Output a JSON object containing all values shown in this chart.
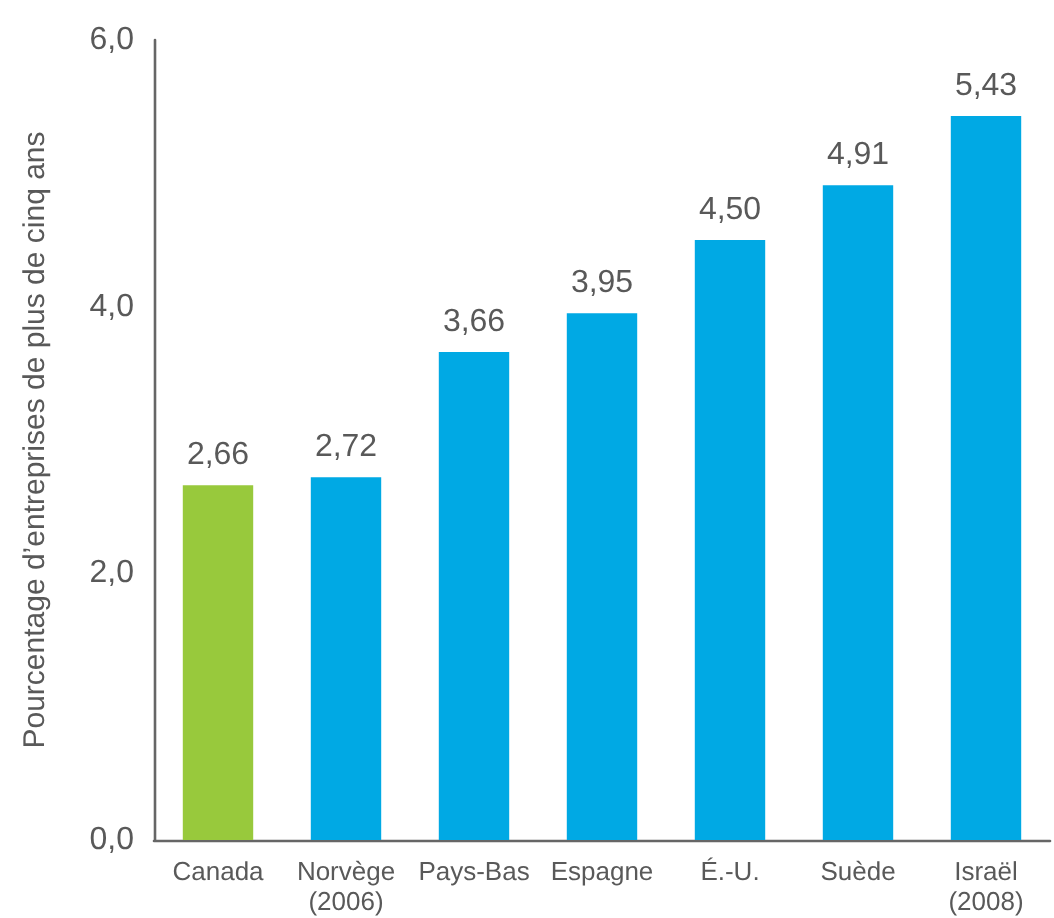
{
  "chart_data": {
    "type": "bar",
    "ylabel": "Pourcentage d’entreprises de plus de cinq ans",
    "categories": [
      "Canada",
      "Norvège (2006)",
      "Pays-Bas",
      "Espagne",
      "É.-U.",
      "Suède",
      "Israël (2008)"
    ],
    "values": [
      2.66,
      2.72,
      3.66,
      3.95,
      4.5,
      4.91,
      5.43
    ],
    "colors": [
      "#98c93c",
      "#00a9e4",
      "#00a9e4",
      "#00a9e4",
      "#00a9e4",
      "#00a9e4",
      "#00a9e4"
    ],
    "value_labels": [
      "2,66",
      "2,72",
      "3,66",
      "3,95",
      "4,50",
      "4,91",
      "5,43"
    ],
    "ylim": [
      0,
      6
    ],
    "yticks": [
      {
        "value": 0,
        "label": "0,0"
      },
      {
        "value": 2,
        "label": "2,0"
      },
      {
        "value": 4,
        "label": "4,0"
      },
      {
        "value": 6,
        "label": "6,0"
      }
    ]
  }
}
